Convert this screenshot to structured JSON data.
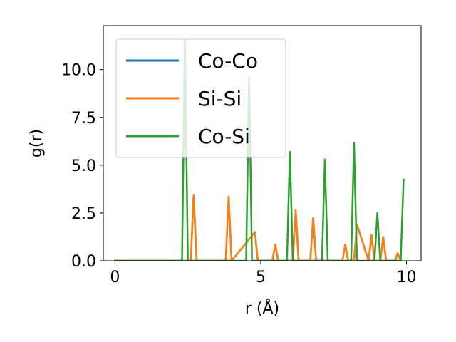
{
  "chart_data": {
    "type": "line",
    "xlabel": "r (Å)",
    "ylabel": "g(r)",
    "xlim": [
      -0.4,
      10.5
    ],
    "ylim": [
      0,
      12.3
    ],
    "x_ticks": [
      0,
      5,
      10
    ],
    "x_tick_labels": [
      "0",
      "5",
      "10"
    ],
    "y_ticks": [
      0.0,
      2.5,
      5.0,
      7.5,
      10.0
    ],
    "y_tick_labels": [
      "0.0",
      "2.5",
      "5.0",
      "7.5",
      "10.0"
    ],
    "grid": false,
    "legend_position": "top-left",
    "series": [
      {
        "name": "Co-Co",
        "color": "#1f77b4",
        "x": [
          0,
          2.6,
          2.7,
          2.8,
          3.8,
          3.9,
          4.0,
          4.8,
          4.9,
          5.4,
          5.5,
          5.6,
          6.1,
          6.2,
          6.3,
          6.7,
          6.8,
          6.9,
          7.8,
          7.9,
          8.0,
          8.2,
          8.3,
          8.7,
          8.8,
          8.9,
          9.1,
          9.2,
          9.3,
          9.6,
          9.7,
          9.8
        ],
        "y": [
          0,
          0,
          3.45,
          0,
          0,
          3.35,
          0,
          1.5,
          0,
          0,
          0.85,
          0,
          0,
          2.65,
          0,
          0,
          2.25,
          0,
          0,
          0.85,
          0,
          0,
          1.9,
          0,
          1.35,
          0,
          0,
          1.25,
          0,
          0,
          0.4,
          0
        ]
      },
      {
        "name": "Si-Si",
        "color": "#ff7f0e",
        "x": [
          0,
          2.6,
          2.7,
          2.8,
          3.8,
          3.9,
          4.0,
          4.8,
          4.9,
          5.4,
          5.5,
          5.6,
          6.1,
          6.2,
          6.3,
          6.7,
          6.8,
          6.9,
          7.8,
          7.9,
          8.0,
          8.2,
          8.3,
          8.7,
          8.8,
          8.9,
          9.1,
          9.2,
          9.3,
          9.6,
          9.7,
          9.8
        ],
        "y": [
          0,
          0,
          3.45,
          0,
          0,
          3.35,
          0,
          1.5,
          0,
          0,
          0.85,
          0,
          0,
          2.65,
          0,
          0,
          2.25,
          0,
          0,
          0.85,
          0,
          0,
          1.9,
          0,
          1.35,
          0,
          0,
          1.25,
          0,
          0,
          0.4,
          0
        ]
      },
      {
        "name": "Co-Si",
        "color": "#2ca02c",
        "x": [
          0,
          2.3,
          2.4,
          2.5,
          4.5,
          4.6,
          4.7,
          5.9,
          6.0,
          6.1,
          7.1,
          7.2,
          7.3,
          8.1,
          8.2,
          8.3,
          8.9,
          9.0,
          9.1,
          9.8,
          9.9
        ],
        "y": [
          0,
          0,
          11.55,
          0,
          0,
          9.6,
          0,
          0,
          5.7,
          0,
          0,
          5.3,
          0,
          0,
          6.15,
          0,
          0,
          2.5,
          0,
          0,
          4.25
        ]
      }
    ]
  }
}
